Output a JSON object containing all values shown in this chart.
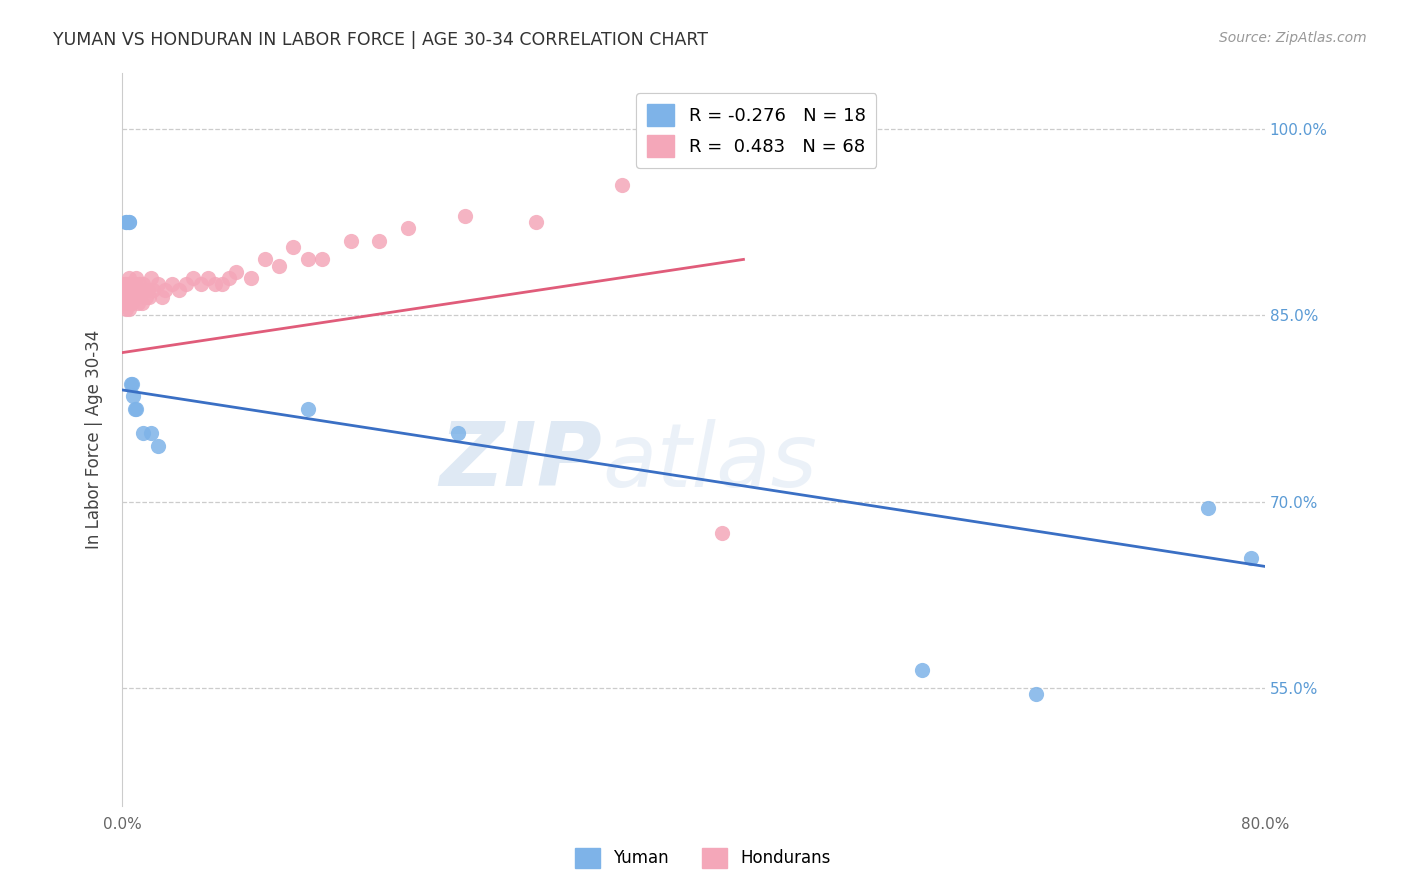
{
  "title": "YUMAN VS HONDURAN IN LABOR FORCE | AGE 30-34 CORRELATION CHART",
  "source": "Source: ZipAtlas.com",
  "ylabel": "In Labor Force | Age 30-34",
  "xlim": [
    0.0,
    0.8
  ],
  "ylim": [
    0.455,
    1.045
  ],
  "xticks": [
    0.0,
    0.1,
    0.2,
    0.3,
    0.4,
    0.5,
    0.6,
    0.7,
    0.8
  ],
  "xticklabels": [
    "0.0%",
    "",
    "",
    "",
    "",
    "",
    "",
    "",
    "80.0%"
  ],
  "yticks": [
    0.55,
    0.7,
    0.85,
    1.0
  ],
  "yticklabels": [
    "55.0%",
    "70.0%",
    "85.0%",
    "100.0%"
  ],
  "blue_color": "#7eb3e8",
  "pink_color": "#f4a7b9",
  "blue_line_color": "#3a6fc4",
  "pink_line_color": "#e05c7a",
  "legend_blue_label": "R = -0.276   N = 18",
  "legend_pink_label": "R =  0.483   N = 68",
  "watermark_text": "ZIP",
  "watermark_text2": "atlas",
  "blue_x": [
    0.003,
    0.003,
    0.005,
    0.005,
    0.006,
    0.007,
    0.008,
    0.009,
    0.01,
    0.015,
    0.02,
    0.025,
    0.13,
    0.235,
    0.56,
    0.64,
    0.76,
    0.79
  ],
  "blue_y": [
    0.925,
    0.925,
    0.925,
    0.925,
    0.795,
    0.795,
    0.785,
    0.775,
    0.775,
    0.755,
    0.755,
    0.745,
    0.775,
    0.755,
    0.565,
    0.545,
    0.695,
    0.655
  ],
  "pink_x": [
    0.002,
    0.002,
    0.002,
    0.002,
    0.003,
    0.003,
    0.003,
    0.003,
    0.003,
    0.004,
    0.004,
    0.004,
    0.005,
    0.005,
    0.005,
    0.005,
    0.005,
    0.005,
    0.006,
    0.006,
    0.006,
    0.006,
    0.007,
    0.007,
    0.007,
    0.008,
    0.008,
    0.009,
    0.009,
    0.01,
    0.01,
    0.011,
    0.012,
    0.013,
    0.014,
    0.015,
    0.016,
    0.017,
    0.018,
    0.019,
    0.02,
    0.022,
    0.025,
    0.028,
    0.03,
    0.035,
    0.04,
    0.045,
    0.05,
    0.055,
    0.06,
    0.065,
    0.07,
    0.075,
    0.08,
    0.09,
    0.1,
    0.11,
    0.12,
    0.13,
    0.14,
    0.16,
    0.18,
    0.2,
    0.24,
    0.29,
    0.35,
    0.42
  ],
  "pink_y": [
    0.875,
    0.875,
    0.87,
    0.865,
    0.875,
    0.87,
    0.865,
    0.86,
    0.855,
    0.875,
    0.87,
    0.865,
    0.88,
    0.875,
    0.87,
    0.865,
    0.86,
    0.855,
    0.875,
    0.87,
    0.865,
    0.86,
    0.875,
    0.87,
    0.86,
    0.875,
    0.865,
    0.875,
    0.865,
    0.88,
    0.865,
    0.86,
    0.875,
    0.87,
    0.86,
    0.875,
    0.87,
    0.865,
    0.87,
    0.865,
    0.88,
    0.87,
    0.875,
    0.865,
    0.87,
    0.875,
    0.87,
    0.875,
    0.88,
    0.875,
    0.88,
    0.875,
    0.875,
    0.88,
    0.885,
    0.88,
    0.895,
    0.89,
    0.905,
    0.895,
    0.895,
    0.91,
    0.91,
    0.92,
    0.93,
    0.925,
    0.955,
    0.675
  ],
  "blue_trend_x": [
    0.0,
    0.8
  ],
  "blue_trend_y": [
    0.79,
    0.648
  ],
  "pink_trend_x": [
    0.0,
    0.435
  ],
  "pink_trend_y": [
    0.82,
    0.895
  ]
}
